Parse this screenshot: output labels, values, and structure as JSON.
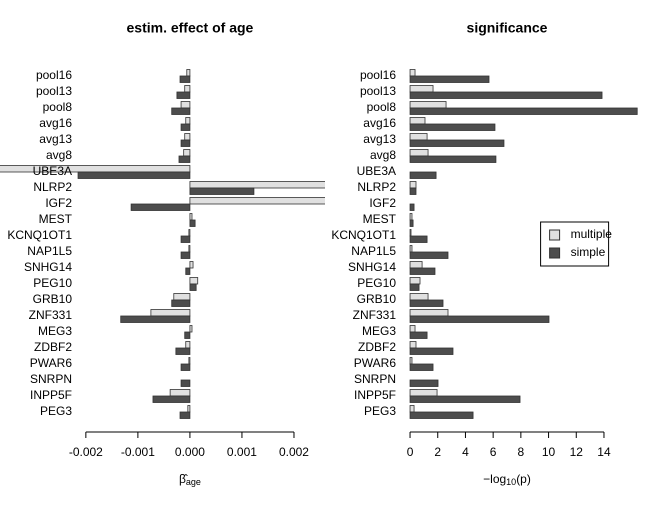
{
  "chart_data": [
    {
      "type": "bar",
      "orientation": "horizontal",
      "title": "estim. effect of age",
      "categories": [
        "pool16",
        "pool13",
        "pool8",
        "avg16",
        "avg13",
        "avg8",
        "UBE3A",
        "NLRP2",
        "IGF2",
        "MEST",
        "KCNQ1OT1",
        "NAP1L5",
        "SNHG14",
        "PEG10",
        "GRB10",
        "ZNF331",
        "MEG3",
        "ZDBF2",
        "PWAR6",
        "SNRPN",
        "INPP5F",
        "PEG3"
      ],
      "series": [
        {
          "name": "multiple",
          "color": "#e0e0e0",
          "values": [
            -6e-05,
            -0.0001,
            -0.00017,
            -8e-05,
            -0.0001,
            -0.00012,
            -0.0037,
            0.0027,
            0.0027,
            4e-05,
            -2e-05,
            -2e-05,
            6e-05,
            0.00015,
            -0.00031,
            -0.00075,
            4e-05,
            -8e-05,
            -2e-05,
            0,
            -0.00038,
            -4e-05
          ]
        },
        {
          "name": "simple",
          "color": "#4d4d4d",
          "values": [
            -0.00019,
            -0.00025,
            -0.00035,
            -0.00017,
            -0.00017,
            -0.00021,
            -0.00215,
            0.00123,
            -0.00113,
            0.0001,
            -0.00017,
            -0.00017,
            -8e-05,
            0.00012,
            -0.00035,
            -0.00133,
            -0.0001,
            -0.00027,
            -0.00017,
            -0.00017,
            -0.00071,
            -0.00019
          ]
        }
      ],
      "xlim": [
        -0.00365,
        0.0026
      ],
      "xticks": [
        {
          "value": -0.002,
          "label": "-0.002"
        },
        {
          "value": -0.001,
          "label": "-0.001"
        },
        {
          "value": 0,
          "label": "0.000"
        },
        {
          "value": 0.001,
          "label": "0.001"
        },
        {
          "value": 0.002,
          "label": "0.002"
        }
      ],
      "xlabel": {
        "main": "β̂",
        "sub": "age"
      },
      "legend": false
    },
    {
      "type": "bar",
      "orientation": "horizontal",
      "title": "significance",
      "categories": [
        "pool16",
        "pool13",
        "pool8",
        "avg16",
        "avg13",
        "avg8",
        "UBE3A",
        "NLRP2",
        "IGF2",
        "MEST",
        "KCNQ1OT1",
        "NAP1L5",
        "SNHG14",
        "PEG10",
        "GRB10",
        "ZNF331",
        "MEG3",
        "ZDBF2",
        "PWAR6",
        "SNRPN",
        "INPP5F",
        "PEG3"
      ],
      "series": [
        {
          "name": "multiple",
          "color": "#e0e0e0",
          "values": [
            0.36,
            1.66,
            2.6,
            1.08,
            1.23,
            1.3,
            0,
            0.43,
            0,
            0.14,
            0.07,
            0.14,
            0.87,
            0.72,
            1.3,
            2.74,
            0.36,
            0.43,
            0.14,
            0,
            1.95,
            0.29
          ]
        },
        {
          "name": "simple",
          "color": "#4d4d4d",
          "values": [
            5.7,
            13.86,
            16.4,
            6.13,
            6.78,
            6.2,
            1.88,
            0.43,
            0.29,
            0.22,
            1.23,
            2.74,
            1.8,
            0.65,
            2.38,
            10.03,
            1.23,
            3.1,
            1.66,
            2.02,
            7.94,
            4.55
          ]
        }
      ],
      "xlim": [
        -0.4,
        16.5
      ],
      "xticks": [
        0,
        2,
        4,
        6,
        8,
        10,
        12,
        14
      ],
      "xlabel": {
        "main": "−log",
        "sub": "10",
        "tail": "(p)"
      },
      "legend": "right"
    }
  ]
}
